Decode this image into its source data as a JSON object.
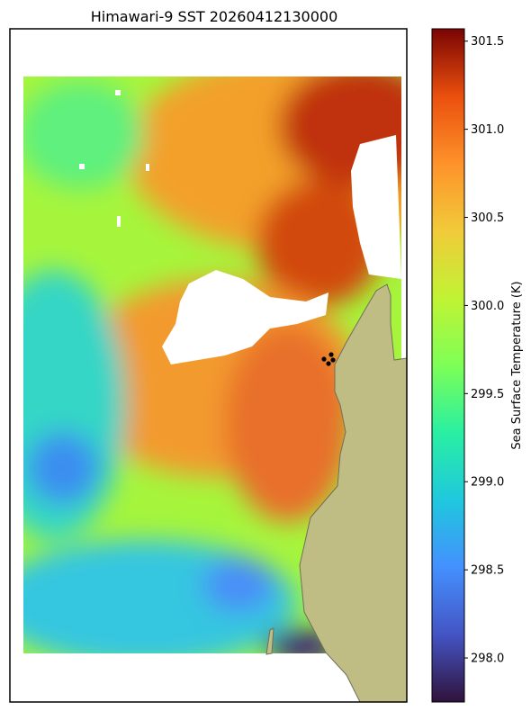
{
  "chart_data": {
    "type": "heatmap",
    "title": "Himawari-9 SST 20260412130000",
    "colorbar": {
      "label": "Sea Surface Temperature (K)",
      "range": [
        297.75,
        301.57
      ],
      "ticks": [
        "298.0",
        "298.5",
        "299.0",
        "299.5",
        "300.0",
        "300.5",
        "301.0",
        "301.5"
      ],
      "tick_values": [
        298.0,
        298.5,
        299.0,
        299.5,
        300.0,
        300.5,
        301.0,
        301.5
      ],
      "colormap": "turbo"
    },
    "grid": false,
    "legend": "none",
    "missing_data_color": "#ffffff",
    "land_color": "#bfbd83",
    "coastline_color": "#6f6f5a",
    "station_marker_color": "#000000",
    "station_markers": 4
  }
}
